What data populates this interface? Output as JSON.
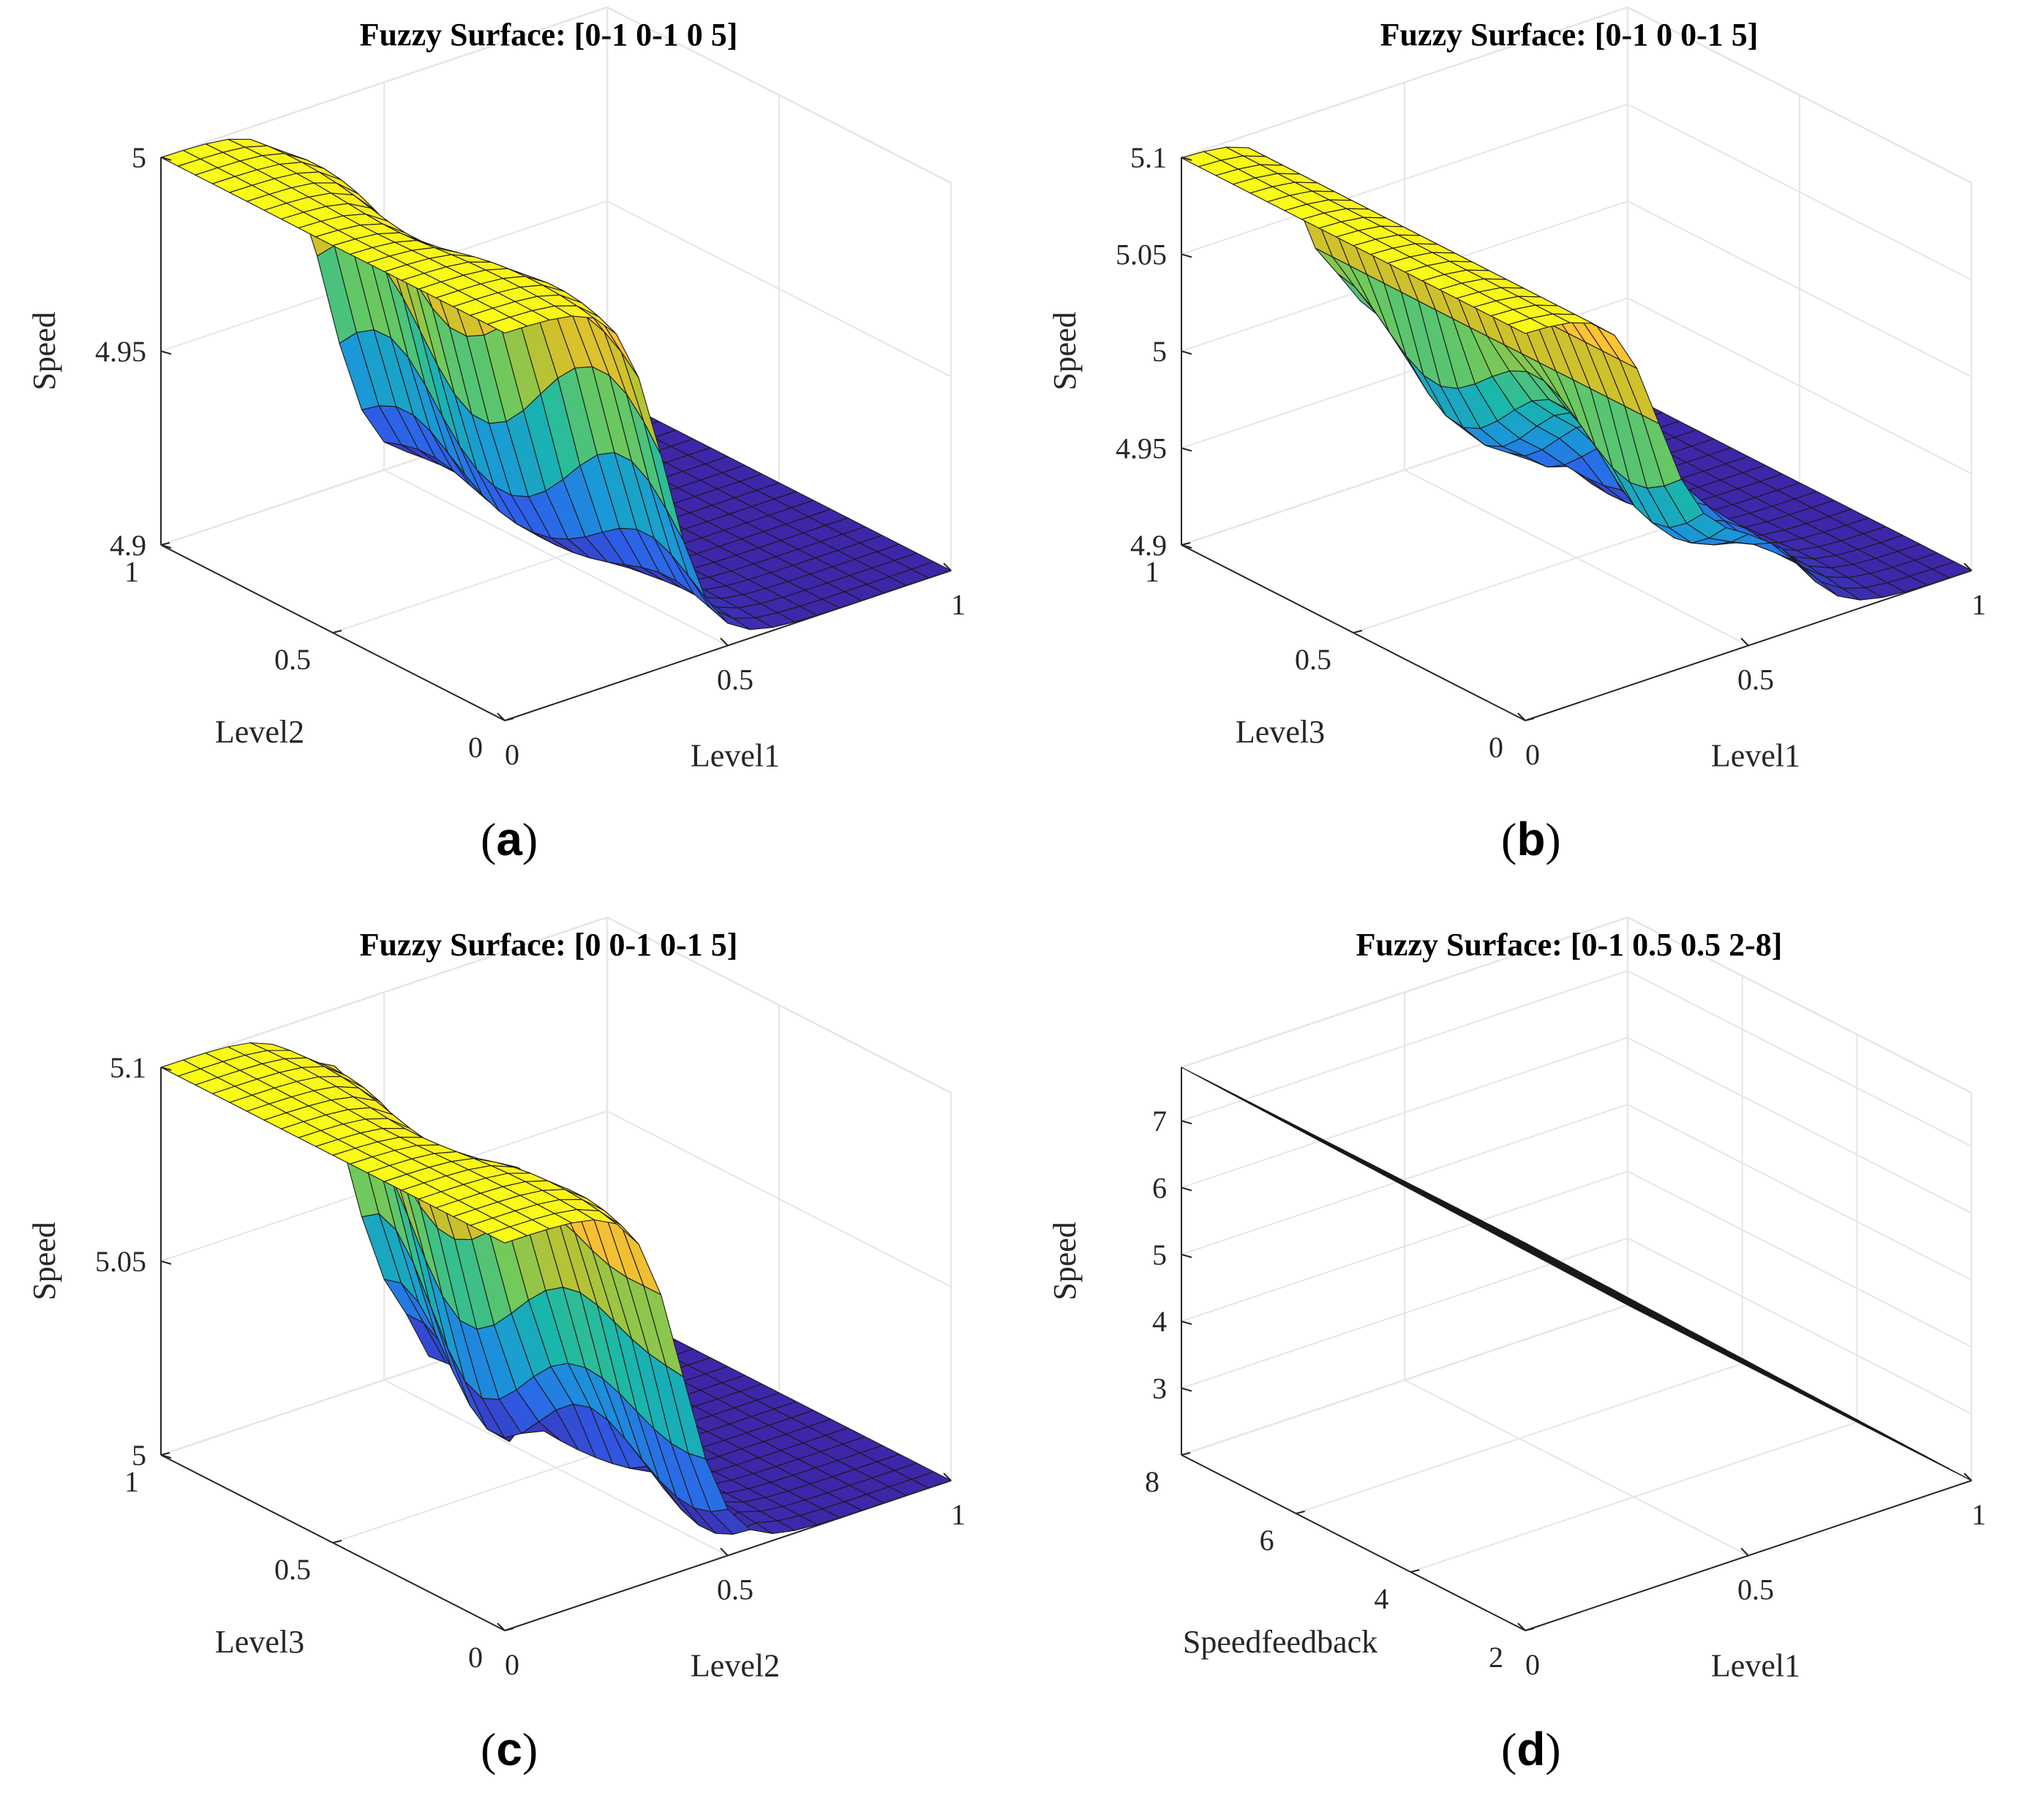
{
  "colors": {
    "grid": "#e6e6e6",
    "axis": "#262626",
    "edge": "#1a1a1a",
    "colormap": [
      "#3e26a8",
      "#2e5fea",
      "#1a97d9",
      "#19b8a9",
      "#6ec95d",
      "#c9c12a",
      "#fec035",
      "#f9fb15"
    ]
  },
  "chart_data": [
    {
      "id": "a",
      "type": "surface",
      "title": "Fuzzy Surface: [0-1 0-1 0 5]",
      "caption_letter": "a",
      "xlabel": "Level1",
      "ylabel": "Level2",
      "zlabel": "Speed",
      "xlim": [
        0,
        1
      ],
      "ylim": [
        0,
        1
      ],
      "zlim": [
        4.9,
        5.0
      ],
      "xticks": [
        0,
        0.5,
        1
      ],
      "xtick_labels": [
        "0",
        "0.5",
        "1"
      ],
      "yticks": [
        0,
        0.5,
        1
      ],
      "ytick_labels": [
        "0",
        "0.5",
        "1"
      ],
      "zticks": [
        4.9,
        4.95,
        5
      ],
      "ztick_labels": [
        "4.9",
        "4.95",
        "5"
      ],
      "grid_size": 21,
      "surface_model": {
        "kind": "step_x",
        "high": 5.0,
        "low": 4.9,
        "center": 0.36,
        "width": 0.05,
        "ripple": 0.0
      }
    },
    {
      "id": "b",
      "type": "surface",
      "title": "Fuzzy Surface: [0-1 0 0-1 5]",
      "caption_letter": "b",
      "xlabel": "Level1",
      "ylabel": "Level3",
      "zlabel": "Speed",
      "xlim": [
        0,
        1
      ],
      "ylim": [
        0,
        1
      ],
      "zlim": [
        4.9,
        5.1
      ],
      "xticks": [
        0,
        0.5,
        1
      ],
      "xtick_labels": [
        "0",
        "0.5",
        "1"
      ],
      "yticks": [
        0,
        0.5,
        1
      ],
      "ytick_labels": [
        "0",
        "0.5",
        "1"
      ],
      "zticks": [
        4.9,
        4.95,
        5,
        5.05,
        5.1
      ],
      "ztick_labels": [
        "4.9",
        "4.95",
        "5",
        "5.05",
        "5.1"
      ],
      "grid_size": 21,
      "surface_model": {
        "kind": "two_step",
        "high": 5.1,
        "mid": 4.96,
        "low": 4.9,
        "center": 0.3,
        "center2": 0.62,
        "width": 0.05,
        "ripple": 0.02
      }
    },
    {
      "id": "c",
      "type": "surface",
      "title": "Fuzzy Surface: [0 0-1 0-1 5]",
      "caption_letter": "c",
      "xlabel": "Level2",
      "ylabel": "Level3",
      "zlabel": "Speed",
      "xlim": [
        0,
        1
      ],
      "ylim": [
        0,
        1
      ],
      "zlim": [
        5.0,
        5.1
      ],
      "xticks": [
        0,
        0.5,
        1
      ],
      "xtick_labels": [
        "0",
        "0.5",
        "1"
      ],
      "yticks": [
        0,
        0.5,
        1
      ],
      "ytick_labels": [
        "0",
        "0.5",
        "1"
      ],
      "zticks": [
        5,
        5.05,
        5.1
      ],
      "ztick_labels": [
        "5",
        "5.05",
        "5.1"
      ],
      "grid_size": 21,
      "surface_model": {
        "kind": "step_x",
        "high": 5.1,
        "low": 5.0,
        "center": 0.4,
        "width": 0.05,
        "ripple": 0.012
      }
    },
    {
      "id": "d",
      "type": "surface",
      "title": "Fuzzy Surface: [0-1 0.5 0.5 2-8]",
      "caption_letter": "d",
      "xlabel": "Level1",
      "ylabel": "Speedfeedback",
      "zlabel": "Speed",
      "xlim": [
        0,
        1
      ],
      "ylim": [
        2,
        8
      ],
      "zlim": [
        2,
        7.8
      ],
      "xticks": [
        0,
        0.5,
        1
      ],
      "xtick_labels": [
        "0",
        "0.5",
        "1"
      ],
      "yticks": [
        2,
        4,
        6,
        8
      ],
      "ytick_labels": [
        "2",
        "4",
        "6",
        "8"
      ],
      "zticks": [
        3,
        4,
        5,
        6,
        7
      ],
      "ztick_labels": [
        "3",
        "4",
        "5",
        "6",
        "7"
      ],
      "grid_size": 21,
      "surface_model": {
        "kind": "plane_x",
        "high": 7.8,
        "low": 2.0,
        "center": 0,
        "width": 1,
        "ripple": 0.0
      }
    }
  ]
}
